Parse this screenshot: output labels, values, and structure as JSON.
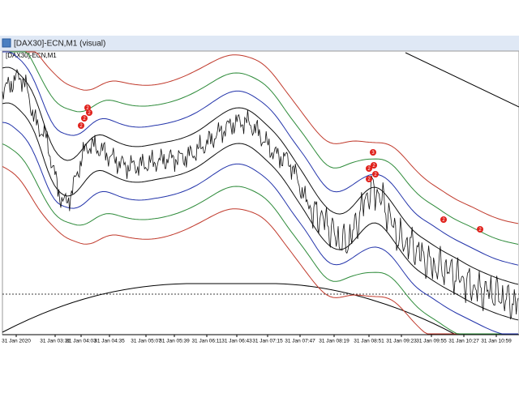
{
  "window": {
    "title": "[DAX30]-ECN,M1 (visual)",
    "chart_label": "[DAX30]-ECN,M1"
  },
  "x_axis": {
    "labels": [
      "31 Jan 2020",
      "31 Jan 03:31",
      "31 Jan 04:03",
      "31 Jan 04:35",
      "31 Jan 05:07",
      "31 Jan 05:39",
      "31 Jan 06:11",
      "31 Jan 06:43",
      "31 Jan 07:15",
      "31 Jan 07:47",
      "31 Jan 08:19",
      "31 Jan 08:51",
      "31 Jan 09:23",
      "31 Jan 09:55",
      "31 Jan 10:27",
      "31 Jan 10:59"
    ]
  },
  "markers": [
    "2",
    "2",
    "2",
    "2",
    "3",
    "2",
    "2",
    "2",
    "2",
    "2",
    "2"
  ]
}
